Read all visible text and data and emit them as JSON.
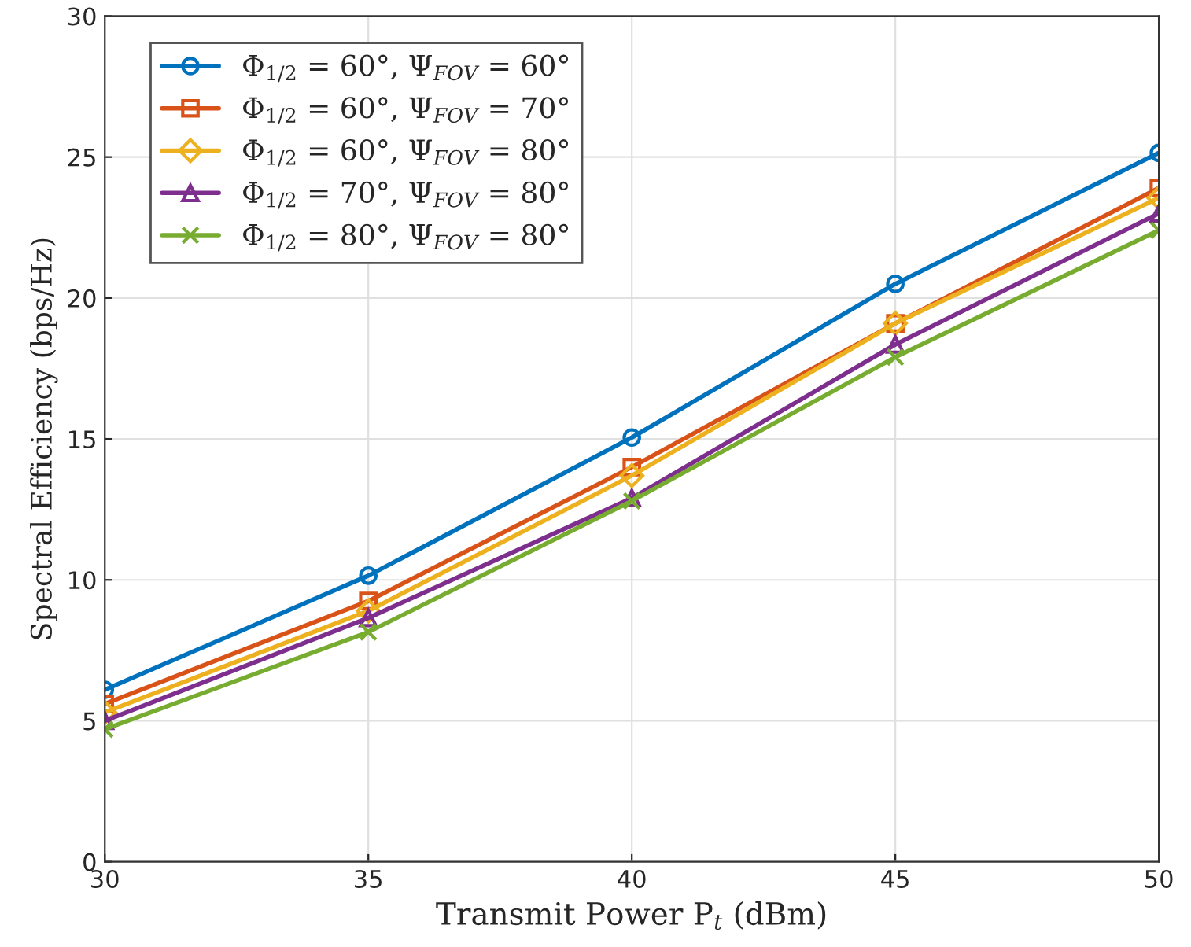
{
  "chart_data": {
    "type": "line",
    "xlabel": "Transmit Power P$_{t}$ (dBm)",
    "ylabel": "Spectral Efficiency (bps/Hz)",
    "x": [
      30,
      35,
      40,
      45,
      50
    ],
    "series": [
      {
        "name": "Φ$_{1/2}$ = 60°, Ψ$_{FOV}$ = 60°",
        "color": "#0072bd",
        "marker": "circle",
        "values": [
          6.1,
          10.15,
          15.05,
          20.5,
          25.15
        ]
      },
      {
        "name": "Φ$_{1/2}$ = 60°, Ψ$_{FOV}$ = 70°",
        "color": "#d95319",
        "marker": "square",
        "values": [
          5.6,
          9.25,
          14.0,
          19.1,
          23.9
        ]
      },
      {
        "name": "Φ$_{1/2}$ = 60°, Ψ$_{FOV}$ = 80°",
        "color": "#edb120",
        "marker": "diamond",
        "values": [
          5.3,
          8.9,
          13.7,
          19.1,
          23.55
        ]
      },
      {
        "name": "Φ$_{1/2}$ = 70°, Ψ$_{FOV}$ = 80°",
        "color": "#7e2f8e",
        "marker": "triangle",
        "values": [
          5.0,
          8.65,
          12.9,
          18.35,
          23.0
        ]
      },
      {
        "name": "Φ$_{1/2}$ = 80°, Ψ$_{FOV}$ = 80°",
        "color": "#77ac30",
        "marker": "cross",
        "values": [
          4.7,
          8.15,
          12.8,
          17.9,
          22.4
        ]
      }
    ],
    "xlim": [
      30,
      50
    ],
    "xticks": [
      30,
      35,
      40,
      45,
      50
    ],
    "ylim": [
      0,
      30
    ],
    "yticks": [
      0,
      5,
      10,
      15,
      20,
      25,
      30
    ],
    "grid": true,
    "legend": "top left",
    "line_style": "solid"
  }
}
